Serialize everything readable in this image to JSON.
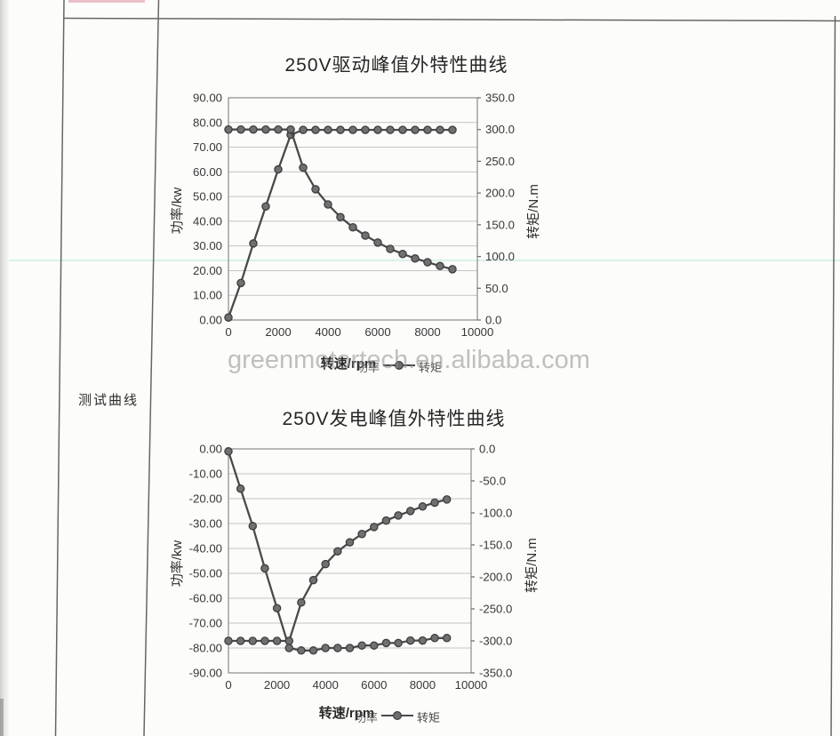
{
  "page": {
    "row_label": "测试曲线",
    "watermark": "greenmotortech.en.alibaba.com"
  },
  "chart_data": [
    {
      "type": "line",
      "title": "250V驱动峰值外特性曲线",
      "xlabel": "转速/rpm",
      "ylabel_left": "功率/kw",
      "ylabel_right": "转矩/N.m",
      "legend": [
        "功率",
        "转矩"
      ],
      "legend_position": "bottom",
      "grid": "horizontal",
      "xlim": [
        0,
        10000
      ],
      "ylim_left": [
        0,
        90
      ],
      "ylim_right": [
        0,
        350
      ],
      "x_tick_labels": [
        "0",
        "2000",
        "4000",
        "6000",
        "8000",
        "10000"
      ],
      "y_tick_labels_left": [
        "90.00",
        "80.00",
        "70.00",
        "60.00",
        "50.00",
        "40.00",
        "30.00",
        "20.00",
        "10.00",
        "0.00"
      ],
      "y_tick_labels_right": [
        "350.0",
        "300.0",
        "250.0",
        "200.0",
        "150.0",
        "100.0",
        "50.0",
        "0.0"
      ],
      "x": [
        0,
        500,
        1000,
        1500,
        2000,
        2500,
        3000,
        3500,
        4000,
        4500,
        5000,
        5500,
        6000,
        6500,
        7000,
        7500,
        8000,
        8500,
        9000
      ],
      "series": [
        {
          "name": "功率",
          "axis": "left",
          "unit": "kw",
          "values": [
            1,
            15,
            31,
            46,
            61,
            75,
            77,
            77,
            77,
            77,
            77,
            77,
            77,
            77,
            77,
            77,
            77,
            77,
            77
          ]
        },
        {
          "name": "转矩",
          "axis": "right",
          "unit": "N.m",
          "values": [
            300,
            300,
            300,
            300,
            300,
            300,
            240,
            206,
            182,
            162,
            146,
            133,
            122,
            112,
            104,
            97,
            91,
            85,
            80
          ]
        }
      ]
    },
    {
      "type": "line",
      "title": "250V发电峰值外特性曲线",
      "xlabel": "转速/rpm",
      "ylabel_left": "功率/kw",
      "ylabel_right": "转矩/N.m",
      "legend": [
        "功率",
        "转矩"
      ],
      "legend_position": "bottom",
      "grid": "horizontal",
      "xlim": [
        0,
        10000
      ],
      "ylim_left": [
        -90,
        0
      ],
      "ylim_right": [
        -350,
        0
      ],
      "x_tick_labels": [
        "0",
        "2000",
        "4000",
        "6000",
        "8000",
        "10000"
      ],
      "y_tick_labels_left": [
        "0.00",
        "-10.00",
        "-20.00",
        "-30.00",
        "-40.00",
        "-50.00",
        "-60.00",
        "-70.00",
        "-80.00",
        "-90.00"
      ],
      "y_tick_labels_right": [
        "0.0",
        "-50.0",
        "-100.0",
        "-150.0",
        "-200.0",
        "-250.0",
        "-300.0",
        "-350.0"
      ],
      "x": [
        0,
        500,
        1000,
        1500,
        2000,
        2500,
        3000,
        3500,
        4000,
        4500,
        5000,
        5500,
        6000,
        6500,
        7000,
        7500,
        8000,
        8500,
        9000
      ],
      "series": [
        {
          "name": "功率",
          "axis": "left",
          "unit": "kw",
          "values": [
            -1,
            -16,
            -31,
            -48,
            -64,
            -80,
            -81,
            -81,
            -80,
            -80,
            -80,
            -79,
            -79,
            -78,
            -78,
            -77,
            -77,
            -76,
            -76
          ]
        },
        {
          "name": "转矩",
          "axis": "right",
          "unit": "N.m",
          "values": [
            -300,
            -300,
            -300,
            -300,
            -300,
            -300,
            -240,
            -205,
            -180,
            -160,
            -146,
            -133,
            -122,
            -112,
            -104,
            -97,
            -90,
            -84,
            -79
          ]
        }
      ]
    }
  ]
}
